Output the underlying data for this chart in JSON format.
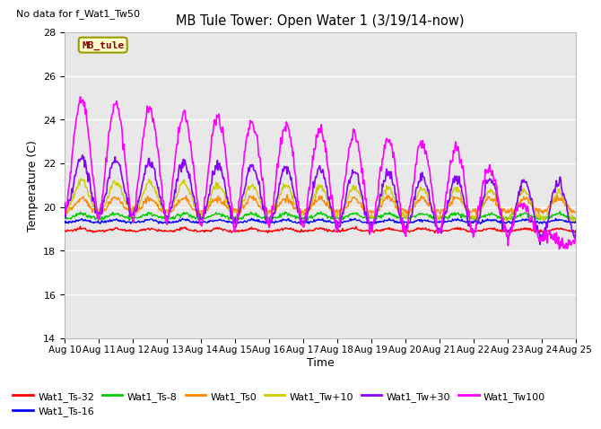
{
  "title": "MB Tule Tower: Open Water 1 (3/19/14-now)",
  "no_data_text": "No data for f_Wat1_Tw50",
  "xlabel": "Time",
  "ylabel": "Temperature (C)",
  "ylim": [
    14,
    28
  ],
  "xlim": [
    0,
    15
  ],
  "yticks": [
    14,
    16,
    18,
    20,
    22,
    24,
    26,
    28
  ],
  "xtick_labels": [
    "Aug 10",
    "Aug 11",
    "Aug 12",
    "Aug 13",
    "Aug 14",
    "Aug 15",
    "Aug 16",
    "Aug 17",
    "Aug 18",
    "Aug 19",
    "Aug 20",
    "Aug 21",
    "Aug 22",
    "Aug 23",
    "Aug 24",
    "Aug 25"
  ],
  "series": {
    "Wat1_Ts-32": {
      "color": "#ff0000"
    },
    "Wat1_Ts-16": {
      "color": "#0000ff"
    },
    "Wat1_Ts-8": {
      "color": "#00cc00"
    },
    "Wat1_Ts0": {
      "color": "#ff8800"
    },
    "Wat1_Tw+10": {
      "color": "#cccc00"
    },
    "Wat1_Tw+30": {
      "color": "#8800ff"
    },
    "Wat1_Tw100": {
      "color": "#ff00ff"
    }
  },
  "legend_items": [
    {
      "label": "Wat1_Ts-32",
      "color": "#ff0000"
    },
    {
      "label": "Wat1_Ts-16",
      "color": "#0000ff"
    },
    {
      "label": "Wat1_Ts-8",
      "color": "#00cc00"
    },
    {
      "label": "Wat1_Ts0",
      "color": "#ff8800"
    },
    {
      "label": "Wat1_Tw+10",
      "color": "#cccc00"
    },
    {
      "label": "Wat1_Tw+30",
      "color": "#8800ff"
    },
    {
      "label": "Wat1_Tw100",
      "color": "#ff00ff"
    }
  ],
  "plot_bg_color": "#e8e8e8",
  "tag_text": "MB_tule",
  "tag_bg": "#ffffcc",
  "tag_border": "#999900"
}
